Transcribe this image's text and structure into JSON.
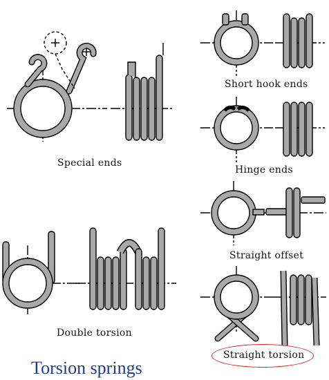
{
  "title": "Torsion springs",
  "labels": {
    "special": "Special ends",
    "double": "Double torsion",
    "short_hook": "Short hook ends",
    "hinge": "Hinge ends",
    "straight_offset": "Straight offset",
    "straight_torsion": "Straight torsion"
  },
  "highlight_color": "#dd2222",
  "title_color": "#1f3c8c"
}
